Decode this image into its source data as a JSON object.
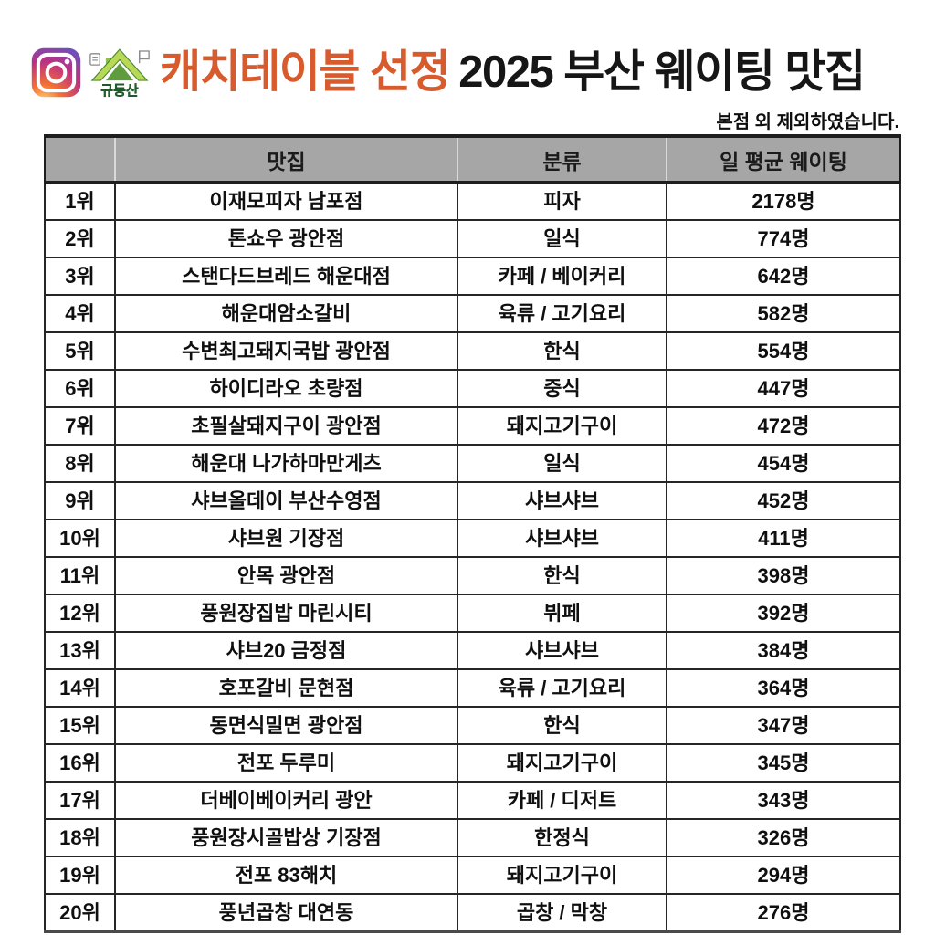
{
  "header": {
    "logo_text": "규동산",
    "title_highlight": "캐치테이블 선정",
    "title_rest": "2025 부산 웨이팅 맛집",
    "note": "본점 외 제외하였습니다."
  },
  "colors": {
    "accent_orange": "#d75b2d",
    "title_black": "#161616",
    "table_header_gray": "#a6a6a6",
    "border_dark": "#262626",
    "logo_green": "#2f7d3b"
  },
  "table": {
    "columns": [
      "",
      "맛집",
      "분류",
      "일 평균 웨이팅"
    ],
    "rows": [
      {
        "rank": "1위",
        "restaurant": "이재모피자 남포점",
        "category": "피자",
        "waiting": "2178명"
      },
      {
        "rank": "2위",
        "restaurant": "톤쇼우 광안점",
        "category": "일식",
        "waiting": "774명"
      },
      {
        "rank": "3위",
        "restaurant": "스탠다드브레드 해운대점",
        "category": "카페 / 베이커리",
        "waiting": "642명"
      },
      {
        "rank": "4위",
        "restaurant": "해운대암소갈비",
        "category": "육류 / 고기요리",
        "waiting": "582명"
      },
      {
        "rank": "5위",
        "restaurant": "수변최고돼지국밥 광안점",
        "category": "한식",
        "waiting": "554명"
      },
      {
        "rank": "6위",
        "restaurant": "하이디라오 초량점",
        "category": "중식",
        "waiting": "447명"
      },
      {
        "rank": "7위",
        "restaurant": "초필살돼지구이 광안점",
        "category": "돼지고기구이",
        "waiting": "472명"
      },
      {
        "rank": "8위",
        "restaurant": "해운대 나가하마만게츠",
        "category": "일식",
        "waiting": "454명"
      },
      {
        "rank": "9위",
        "restaurant": "샤브올데이 부산수영점",
        "category": "샤브샤브",
        "waiting": "452명"
      },
      {
        "rank": "10위",
        "restaurant": "샤브원 기장점",
        "category": "샤브샤브",
        "waiting": "411명"
      },
      {
        "rank": "11위",
        "restaurant": "안목 광안점",
        "category": "한식",
        "waiting": "398명"
      },
      {
        "rank": "12위",
        "restaurant": "풍원장집밥 마린시티",
        "category": "뷔페",
        "waiting": "392명"
      },
      {
        "rank": "13위",
        "restaurant": "샤브20 금정점",
        "category": "샤브샤브",
        "waiting": "384명"
      },
      {
        "rank": "14위",
        "restaurant": "호포갈비 문현점",
        "category": "육류 / 고기요리",
        "waiting": "364명"
      },
      {
        "rank": "15위",
        "restaurant": "동면식밀면 광안점",
        "category": "한식",
        "waiting": "347명"
      },
      {
        "rank": "16위",
        "restaurant": "전포 두루미",
        "category": "돼지고기구이",
        "waiting": "345명"
      },
      {
        "rank": "17위",
        "restaurant": "더베이베이커리 광안",
        "category": "카페 / 디저트",
        "waiting": "343명"
      },
      {
        "rank": "18위",
        "restaurant": "풍원장시골밥상 기장점",
        "category": "한정식",
        "waiting": "326명"
      },
      {
        "rank": "19위",
        "restaurant": "전포 83해치",
        "category": "돼지고기구이",
        "waiting": "294명"
      },
      {
        "rank": "20위",
        "restaurant": "풍년곱창 대연동",
        "category": "곱창 / 막창",
        "waiting": "276명"
      }
    ]
  }
}
